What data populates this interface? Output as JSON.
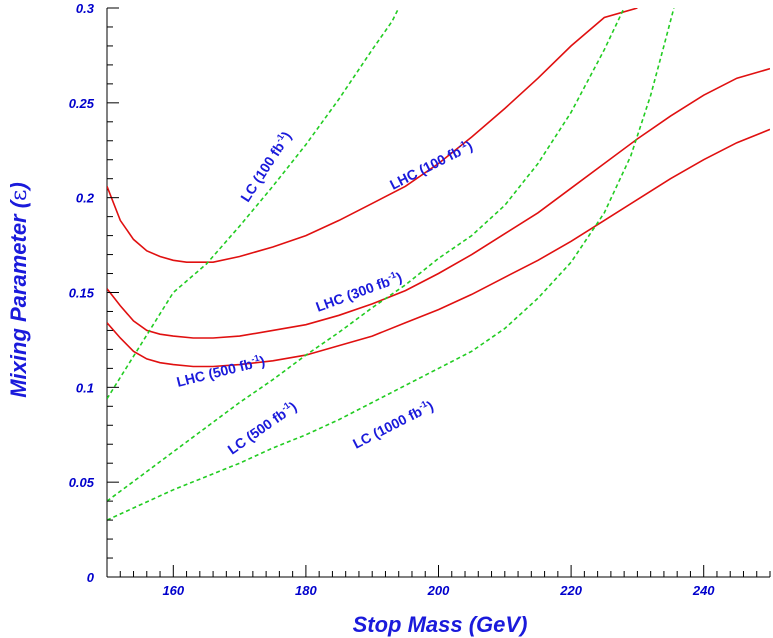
{
  "chart_data": {
    "type": "line",
    "title": "",
    "xlabel": "Stop Mass (GeV)",
    "ylabel_text": "Mixing Parameter (",
    "ylabel_symbol": "ε",
    "ylabel_close": ")",
    "xlim": [
      150,
      250
    ],
    "ylim": [
      0,
      0.3
    ],
    "x_ticks": [
      160,
      180,
      200,
      220,
      240
    ],
    "x_tick_labels": [
      "160",
      "180",
      "200",
      "220",
      "240"
    ],
    "y_ticks": [
      0,
      0.05,
      0.1,
      0.15,
      0.2,
      0.25,
      0.3
    ],
    "y_tick_labels": [
      "0",
      "0.05",
      "0.1",
      "0.15",
      "0.2",
      "0.25",
      "0.3"
    ],
    "grid": false,
    "legend": "none (curves labeled inline)",
    "colors": {
      "lhc": "#e01010",
      "lc": "#22cc22",
      "text": "#1a1adb"
    },
    "series": [
      {
        "name": "LHC (100 fb-1)",
        "label_main": "LHC (100 fb",
        "label_sup": "-1",
        "label_close": ")",
        "style": "solid",
        "color": "#e01010",
        "points": [
          [
            150,
            0.206
          ],
          [
            152,
            0.188
          ],
          [
            154,
            0.178
          ],
          [
            156,
            0.172
          ],
          [
            158,
            0.169
          ],
          [
            160,
            0.167
          ],
          [
            162,
            0.166
          ],
          [
            164,
            0.166
          ],
          [
            166,
            0.166
          ],
          [
            170,
            0.169
          ],
          [
            175,
            0.174
          ],
          [
            180,
            0.18
          ],
          [
            185,
            0.188
          ],
          [
            190,
            0.197
          ],
          [
            195,
            0.206
          ],
          [
            200,
            0.218
          ],
          [
            205,
            0.232
          ],
          [
            210,
            0.247
          ],
          [
            215,
            0.263
          ],
          [
            220,
            0.28
          ],
          [
            225,
            0.295
          ],
          [
            230,
            0.3
          ]
        ]
      },
      {
        "name": "LHC (300 fb-1)",
        "label_main": "LHC (300 fb",
        "label_sup": "-1",
        "label_close": ")",
        "style": "solid",
        "color": "#e01010",
        "points": [
          [
            150,
            0.152
          ],
          [
            152,
            0.143
          ],
          [
            154,
            0.135
          ],
          [
            156,
            0.13
          ],
          [
            158,
            0.128
          ],
          [
            160,
            0.127
          ],
          [
            163,
            0.126
          ],
          [
            166,
            0.126
          ],
          [
            170,
            0.127
          ],
          [
            175,
            0.13
          ],
          [
            180,
            0.133
          ],
          [
            185,
            0.138
          ],
          [
            190,
            0.144
          ],
          [
            195,
            0.151
          ],
          [
            200,
            0.16
          ],
          [
            205,
            0.17
          ],
          [
            210,
            0.181
          ],
          [
            215,
            0.192
          ],
          [
            220,
            0.205
          ],
          [
            225,
            0.218
          ],
          [
            230,
            0.231
          ],
          [
            235,
            0.243
          ],
          [
            240,
            0.254
          ],
          [
            245,
            0.263
          ],
          [
            250,
            0.268
          ]
        ]
      },
      {
        "name": "LHC (500 fb-1)",
        "label_main": "LHC (500 fb",
        "label_sup": "-1",
        "label_close": ")",
        "style": "solid",
        "color": "#e01010",
        "points": [
          [
            150,
            0.134
          ],
          [
            152,
            0.126
          ],
          [
            154,
            0.119
          ],
          [
            156,
            0.115
          ],
          [
            158,
            0.113
          ],
          [
            160,
            0.112
          ],
          [
            163,
            0.111
          ],
          [
            166,
            0.111
          ],
          [
            170,
            0.112
          ],
          [
            175,
            0.114
          ],
          [
            180,
            0.117
          ],
          [
            185,
            0.122
          ],
          [
            190,
            0.127
          ],
          [
            195,
            0.134
          ],
          [
            200,
            0.141
          ],
          [
            205,
            0.149
          ],
          [
            210,
            0.158
          ],
          [
            215,
            0.167
          ],
          [
            220,
            0.177
          ],
          [
            225,
            0.188
          ],
          [
            230,
            0.199
          ],
          [
            235,
            0.21
          ],
          [
            240,
            0.22
          ],
          [
            245,
            0.229
          ],
          [
            250,
            0.236
          ]
        ]
      },
      {
        "name": "LC (100 fb-1)",
        "label_main": "LC (100 fb",
        "label_sup": "-1",
        "label_close": ")",
        "style": "dashed",
        "color": "#22cc22",
        "points": [
          [
            150,
            0.094
          ],
          [
            155,
            0.122
          ],
          [
            160,
            0.15
          ],
          [
            165,
            0.165
          ],
          [
            170,
            0.185
          ],
          [
            175,
            0.206
          ],
          [
            180,
            0.228
          ],
          [
            185,
            0.252
          ],
          [
            190,
            0.278
          ],
          [
            193,
            0.293
          ],
          [
            194,
            0.3
          ]
        ]
      },
      {
        "name": "LC (500 fb-1)",
        "label_main": "LC (500 fb",
        "label_sup": "-1",
        "label_close": ")",
        "style": "dashed",
        "color": "#22cc22",
        "points": [
          [
            150,
            0.04
          ],
          [
            155,
            0.053
          ],
          [
            160,
            0.066
          ],
          [
            165,
            0.079
          ],
          [
            170,
            0.092
          ],
          [
            175,
            0.104
          ],
          [
            180,
            0.117
          ],
          [
            185,
            0.129
          ],
          [
            190,
            0.142
          ],
          [
            195,
            0.154
          ],
          [
            200,
            0.168
          ],
          [
            205,
            0.18
          ],
          [
            210,
            0.196
          ],
          [
            215,
            0.218
          ],
          [
            220,
            0.245
          ],
          [
            225,
            0.278
          ],
          [
            228,
            0.3
          ]
        ]
      },
      {
        "name": "LC (1000 fb-1)",
        "label_main": "LC (1000 fb",
        "label_sup": "-1",
        "label_close": ")",
        "style": "dashed",
        "color": "#22cc22",
        "points": [
          [
            150,
            0.03
          ],
          [
            155,
            0.038
          ],
          [
            160,
            0.046
          ],
          [
            165,
            0.053
          ],
          [
            170,
            0.06
          ],
          [
            175,
            0.068
          ],
          [
            180,
            0.075
          ],
          [
            185,
            0.083
          ],
          [
            190,
            0.092
          ],
          [
            195,
            0.101
          ],
          [
            200,
            0.11
          ],
          [
            205,
            0.119
          ],
          [
            210,
            0.131
          ],
          [
            215,
            0.147
          ],
          [
            220,
            0.166
          ],
          [
            225,
            0.192
          ],
          [
            229,
            0.222
          ],
          [
            232,
            0.254
          ],
          [
            234,
            0.28
          ],
          [
            235.5,
            0.3
          ]
        ]
      }
    ]
  }
}
